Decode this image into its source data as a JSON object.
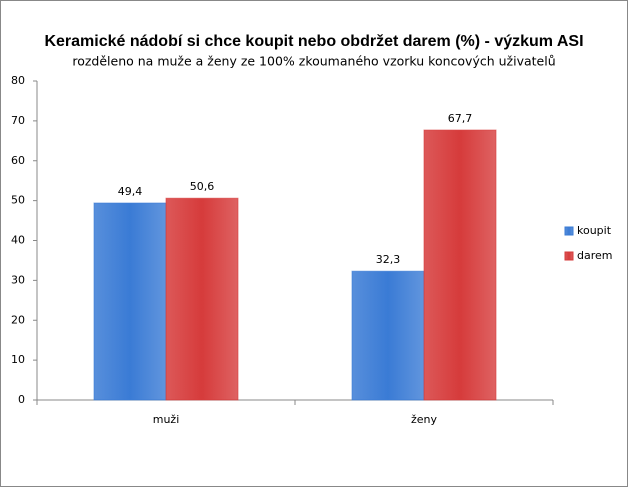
{
  "chart_data": {
    "type": "bar",
    "title": "Keramické nádobí si chce koupit nebo obdržet darem (%) - výzkum ASI",
    "subtitle": "rozděleno na muže a ženy ze 100% zkoumaného vzorku koncových uživatelů",
    "categories": [
      "muži",
      "ženy"
    ],
    "series": [
      {
        "name": "koupit",
        "color": "#3a7bd5",
        "values": [
          49.4,
          32.3
        ],
        "value_labels": [
          "49,4",
          "32,3"
        ]
      },
      {
        "name": "darem",
        "color": "#d63b3b",
        "values": [
          50.6,
          67.7
        ],
        "value_labels": [
          "50,6",
          "67,7"
        ]
      }
    ],
    "ylim": [
      0,
      80
    ],
    "yticks": [
      0,
      10,
      20,
      30,
      40,
      50,
      60,
      70,
      80
    ],
    "grid": false,
    "legend": "right"
  }
}
